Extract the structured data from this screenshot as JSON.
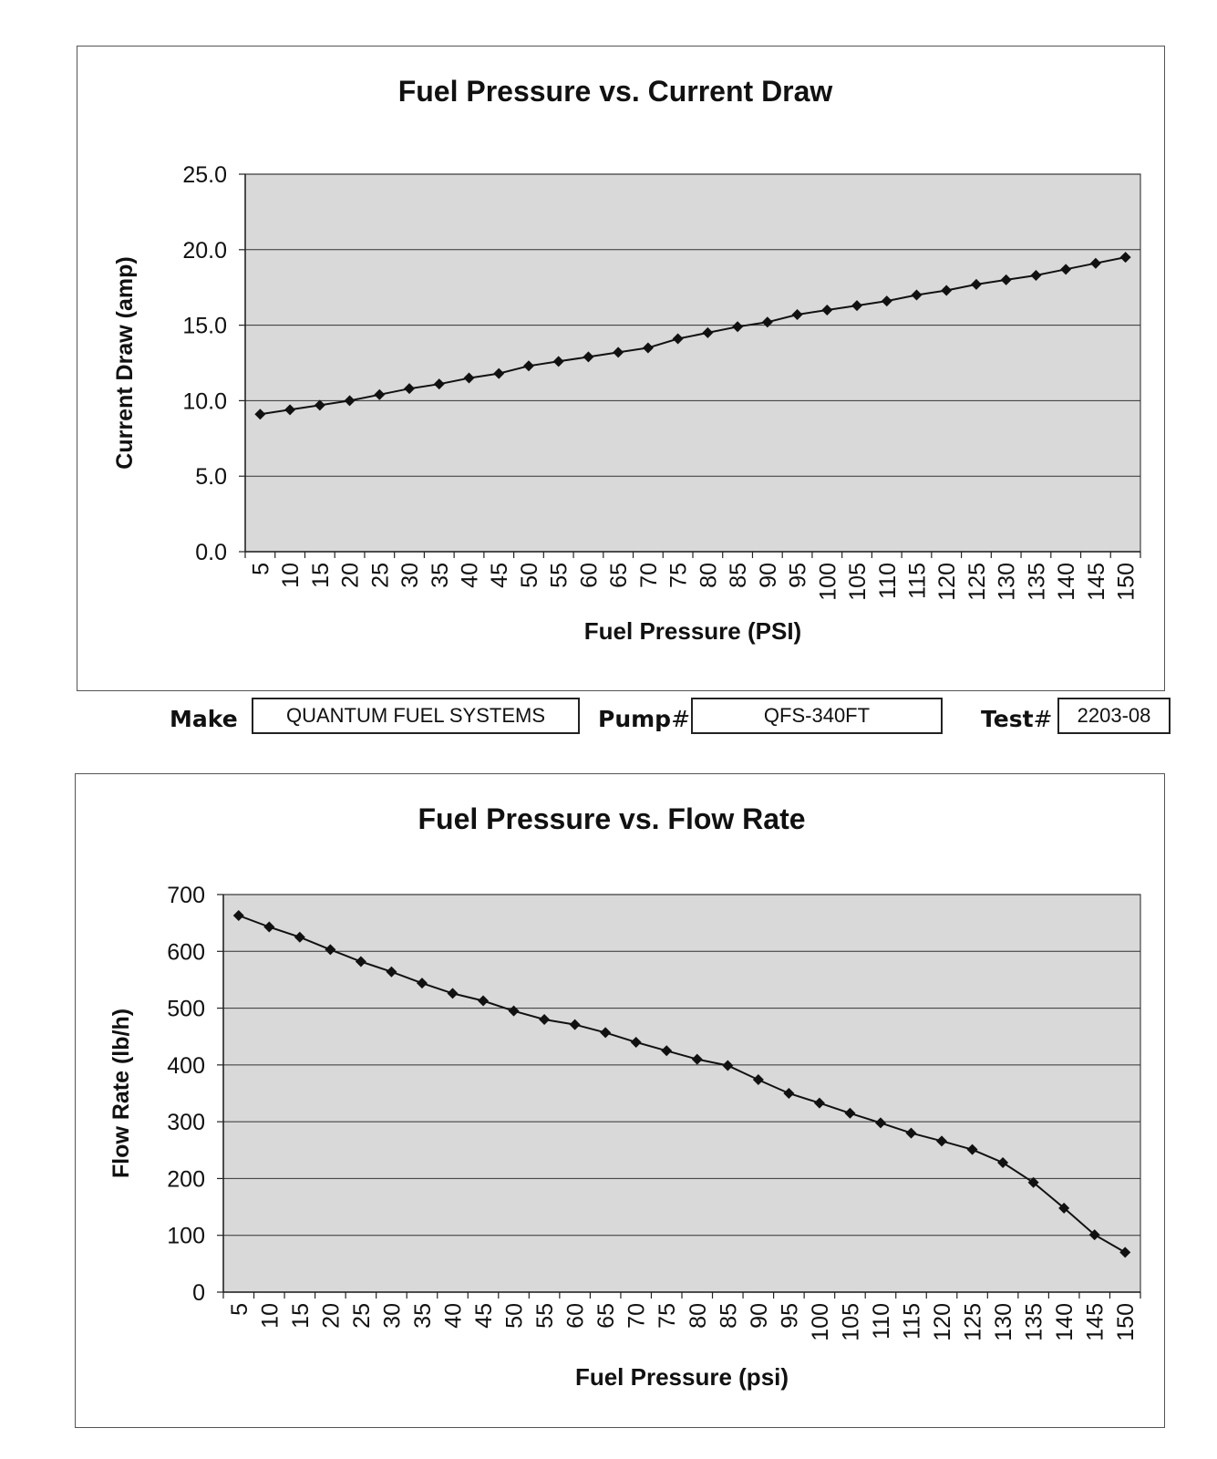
{
  "info": {
    "make_label": "Make",
    "make_value": "QUANTUM FUEL SYSTEMS",
    "pump_label": "Pump",
    "pump_hash": "#",
    "pump_value": "QFS-340FT",
    "test_label": "Test",
    "test_hash": "#",
    "test_value": "2203-08"
  },
  "colors": {
    "plot_bg": "#d9d9d9",
    "line": "#111111",
    "grid": "#333333"
  },
  "chart_data": [
    {
      "type": "line",
      "title": "Fuel Pressure vs. Current Draw",
      "xlabel": "Fuel Pressure (PSI)",
      "ylabel": "Current Draw (amp)",
      "ylim": [
        0,
        25
      ],
      "yticks": [
        "0.0",
        "5.0",
        "10.0",
        "15.0",
        "20.0",
        "25.0"
      ],
      "grid": true,
      "legend": "none",
      "categories": [
        "5",
        "10",
        "15",
        "20",
        "25",
        "30",
        "35",
        "40",
        "45",
        "50",
        "55",
        "60",
        "65",
        "70",
        "75",
        "80",
        "85",
        "90",
        "95",
        "100",
        "105",
        "110",
        "115",
        "120",
        "125",
        "130",
        "135",
        "140",
        "145",
        "150"
      ],
      "series": [
        {
          "values": [
            9.1,
            9.4,
            9.7,
            10.0,
            10.4,
            10.8,
            11.1,
            11.5,
            11.8,
            12.3,
            12.6,
            12.9,
            13.2,
            13.5,
            14.1,
            14.5,
            14.9,
            15.2,
            15.7,
            16.0,
            16.3,
            16.6,
            17.0,
            17.3,
            17.7,
            18.0,
            18.3,
            18.7,
            19.1,
            19.5
          ]
        }
      ]
    },
    {
      "type": "line",
      "title": "Fuel Pressure vs. Flow Rate",
      "xlabel": "Fuel Pressure (psi)",
      "ylabel": "Flow Rate (lb/h)",
      "ylim": [
        0,
        700
      ],
      "yticks": [
        "0",
        "100",
        "200",
        "300",
        "400",
        "500",
        "600",
        "700"
      ],
      "grid": true,
      "legend": "none",
      "categories": [
        "5",
        "10",
        "15",
        "20",
        "25",
        "30",
        "35",
        "40",
        "45",
        "50",
        "55",
        "60",
        "65",
        "70",
        "75",
        "80",
        "85",
        "90",
        "95",
        "100",
        "105",
        "110",
        "115",
        "120",
        "125",
        "130",
        "135",
        "140",
        "145",
        "150"
      ],
      "series": [
        {
          "values": [
            663,
            643,
            625,
            603,
            582,
            564,
            544,
            526,
            513,
            495,
            480,
            471,
            457,
            440,
            425,
            410,
            399,
            374,
            350,
            333,
            315,
            298,
            280,
            266,
            251,
            228,
            193,
            148,
            101,
            70
          ]
        }
      ]
    }
  ]
}
